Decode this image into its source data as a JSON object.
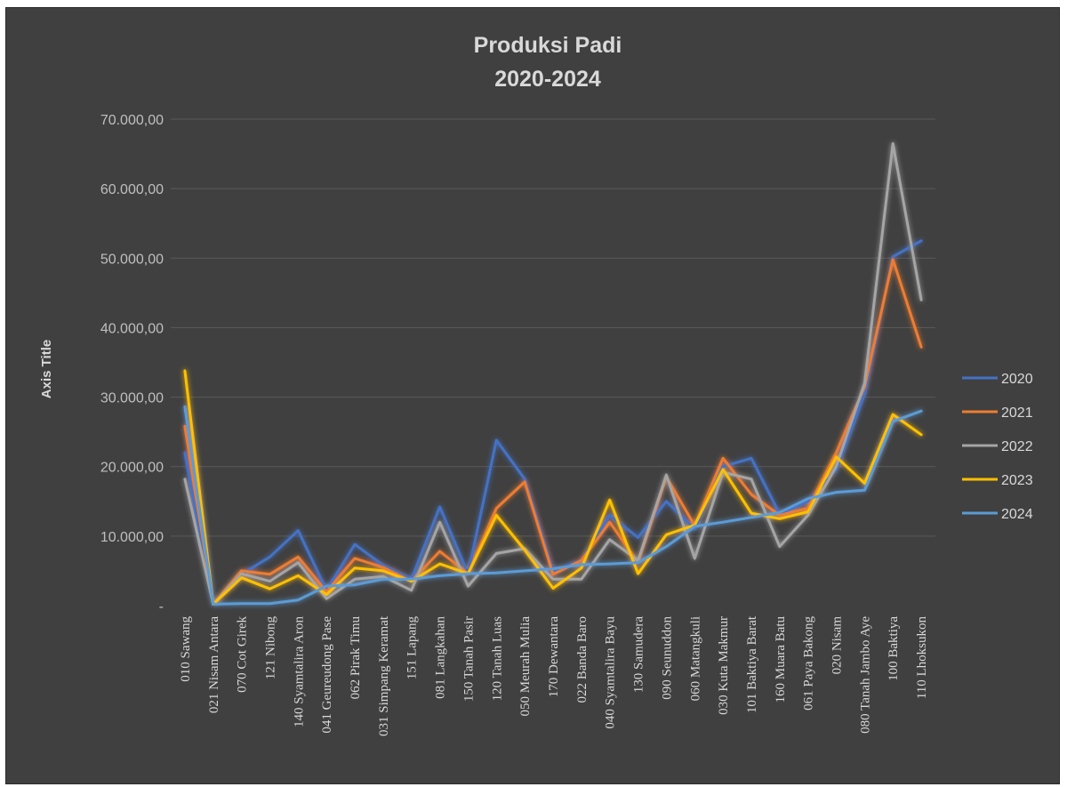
{
  "chart_data": {
    "type": "line",
    "title": [
      "Produksi Padi",
      "2020-2024"
    ],
    "ylabel": "Axis Title",
    "ylim": [
      0,
      70000
    ],
    "yticks": [
      0,
      10000,
      20000,
      30000,
      40000,
      50000,
      60000,
      70000
    ],
    "ytick_labels": [
      "-",
      "10.000,00",
      "20.000,00",
      "30.000,00",
      "40.000,00",
      "50.000,00",
      "60.000,00",
      "70.000,00"
    ],
    "grid": true,
    "legend_position": "right",
    "categories": [
      "010 Sawang",
      "021 Nisam Antara",
      "070 Cot Girek",
      "121 Nibong",
      "140 Syamtalira Aron",
      "041 Geureudong Pase",
      "062 Pirak Timu",
      "031 Simpang Keramat",
      "151 Lapang",
      "081 Langkahan",
      "150 Tanah Pasir",
      "120 Tanah Luas",
      "050 Meurah Mulia",
      "170 Dewantara",
      "022 Banda Baro",
      "040 Syamtalira Bayu",
      "130 Samudera",
      "090 Seunuddon",
      "060 Matangkuli",
      "030 Kuta Makmur",
      "101 Baktiya Barat",
      "160 Muara Batu",
      "061 Paya Bakong",
      "020 Nisam",
      "080 Tanah Jambo Aye",
      "100 Baktiya",
      "110 Lhoksukon"
    ],
    "series": [
      {
        "name": "2020",
        "color": "#4472c4",
        "values": [
          22000,
          200,
          4500,
          7000,
          10800,
          2200,
          8800,
          5800,
          3800,
          14200,
          4600,
          23800,
          18200,
          5000,
          6500,
          13000,
          9800,
          15000,
          11000,
          20000,
          21200,
          13200,
          15000,
          19500,
          30500,
          50200,
          52500
        ]
      },
      {
        "name": "2021",
        "color": "#ed7d31",
        "values": [
          25800,
          200,
          5000,
          4500,
          7000,
          2000,
          6800,
          5500,
          3500,
          7800,
          4600,
          14000,
          17800,
          4500,
          6500,
          12000,
          6200,
          18500,
          11500,
          21200,
          16000,
          13000,
          14000,
          22000,
          31500,
          49800,
          37200
        ]
      },
      {
        "name": "2022",
        "color": "#a5a5a5",
        "values": [
          18200,
          200,
          4600,
          3500,
          6200,
          1000,
          3800,
          4200,
          2200,
          12000,
          2800,
          7500,
          8200,
          3800,
          3800,
          9500,
          6500,
          18800,
          6800,
          19200,
          18200,
          8500,
          13000,
          20000,
          32000,
          66500,
          44000
        ]
      },
      {
        "name": "2023",
        "color": "#ffc000",
        "values": [
          33800,
          200,
          4000,
          2400,
          4300,
          1600,
          5400,
          5000,
          3500,
          6000,
          4600,
          13000,
          8000,
          2500,
          5400,
          15200,
          4600,
          10200,
          11600,
          19600,
          13300,
          12500,
          13500,
          21400,
          17600,
          27500,
          24600
        ]
      },
      {
        "name": "2024",
        "color": "#5b9bd5",
        "values": [
          28600,
          200,
          300,
          300,
          800,
          2800,
          3000,
          3800,
          3800,
          4300,
          4600,
          4700,
          5000,
          5300,
          5900,
          6000,
          6200,
          8500,
          11400,
          12000,
          12700,
          13400,
          15400,
          16300,
          16600,
          26500,
          28000
        ]
      }
    ]
  }
}
